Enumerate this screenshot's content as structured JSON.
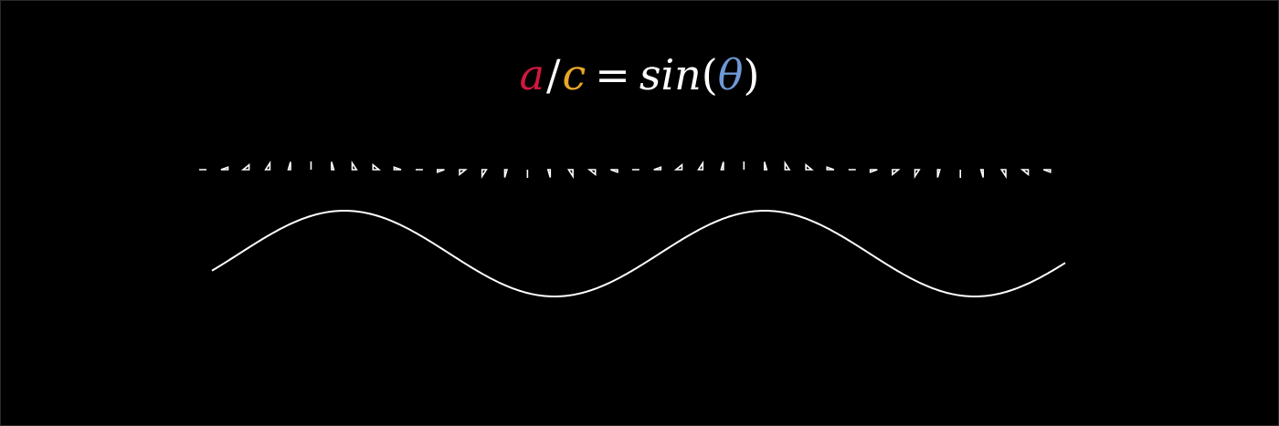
{
  "formula": {
    "a": "a",
    "slash": "/",
    "c": "c",
    "equals": "=",
    "func": "sin",
    "open_paren": "(",
    "theta": "θ",
    "close_paren": ")"
  },
  "colors": {
    "background": "#000000",
    "a": "#d1193f",
    "c": "#e8a72a",
    "theta": "#6f98d6",
    "text": "#ffffff",
    "stroke": "#ffffff"
  },
  "triangle_strip": {
    "count": 40,
    "cycles": 2
  },
  "sine_curve": {
    "amplitude": 1,
    "cycles": 2,
    "phase_start_deg": -30
  }
}
